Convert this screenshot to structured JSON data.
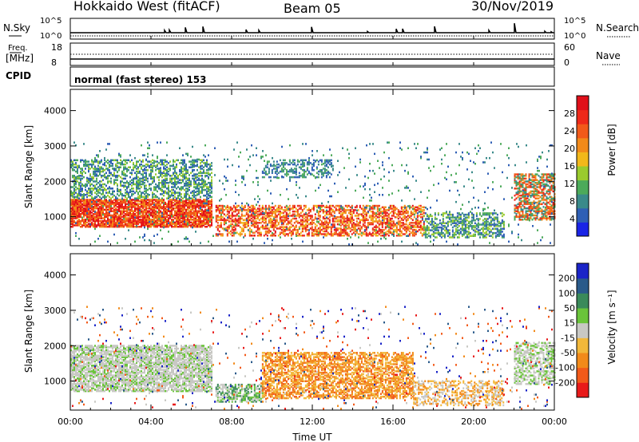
{
  "header": {
    "title": "Hokkaido West (fitACF)",
    "beam": "Beam 05",
    "date": "30/Nov/2019"
  },
  "status_panels": {
    "nsky_label": "N.Sky",
    "nsearch_label": "N.Search",
    "left_ticks_top": [
      "10^5",
      "10^0"
    ],
    "right_ticks_top": [
      "10^5",
      "10^0"
    ],
    "freq_label_1": "Freq.",
    "freq_label_2": "[MHz]",
    "freq_ticks": [
      "18",
      "8"
    ],
    "nave_label": "Nave",
    "nave_ticks": [
      "60",
      "0"
    ],
    "cpid_label": "CPID",
    "cpid_text": "normal (fast stereo) 153"
  },
  "chart_data": [
    {
      "type": "heatmap",
      "name": "power",
      "ylabel": "Slant Range [km]",
      "ylim": [
        180,
        4600
      ],
      "y_ticks": [
        "1000",
        "2000",
        "3000",
        "4000"
      ],
      "x_ticks": [
        "00:00",
        "04:00",
        "08:00",
        "12:00",
        "16:00",
        "20:00",
        "00:00"
      ],
      "colorbar": {
        "label": "Power [dB]",
        "ticks": [
          "4",
          "8",
          "12",
          "16",
          "20",
          "24",
          "28"
        ],
        "colors": [
          "#1a24e6",
          "#2f5fb5",
          "#3a8a8a",
          "#4caa5a",
          "#9acb2e",
          "#f2b81a",
          "#f28a1a",
          "#f25a1a",
          "#ee2a1a",
          "#e0101a"
        ]
      }
    },
    {
      "type": "heatmap",
      "name": "velocity",
      "ylabel": "Slant Range [km]",
      "ylim": [
        180,
        4600
      ],
      "y_ticks": [
        "1000",
        "2000",
        "3000",
        "4000"
      ],
      "x_ticks": [
        "00:00",
        "04:00",
        "08:00",
        "12:00",
        "16:00",
        "20:00",
        "00:00"
      ],
      "xlabel": "Time UT",
      "colorbar": {
        "label": "Velocity [m s⁻¹]",
        "ticks": [
          "200",
          "100",
          "50",
          "15",
          "-15",
          "-50",
          "-100",
          "-200"
        ],
        "colors": [
          "#1a24c8",
          "#2a5a8a",
          "#3a8a5a",
          "#6ac43a",
          "#c8c8c4",
          "#f2b83a",
          "#f28a1a",
          "#f25a1a",
          "#e81a1a"
        ]
      }
    }
  ]
}
